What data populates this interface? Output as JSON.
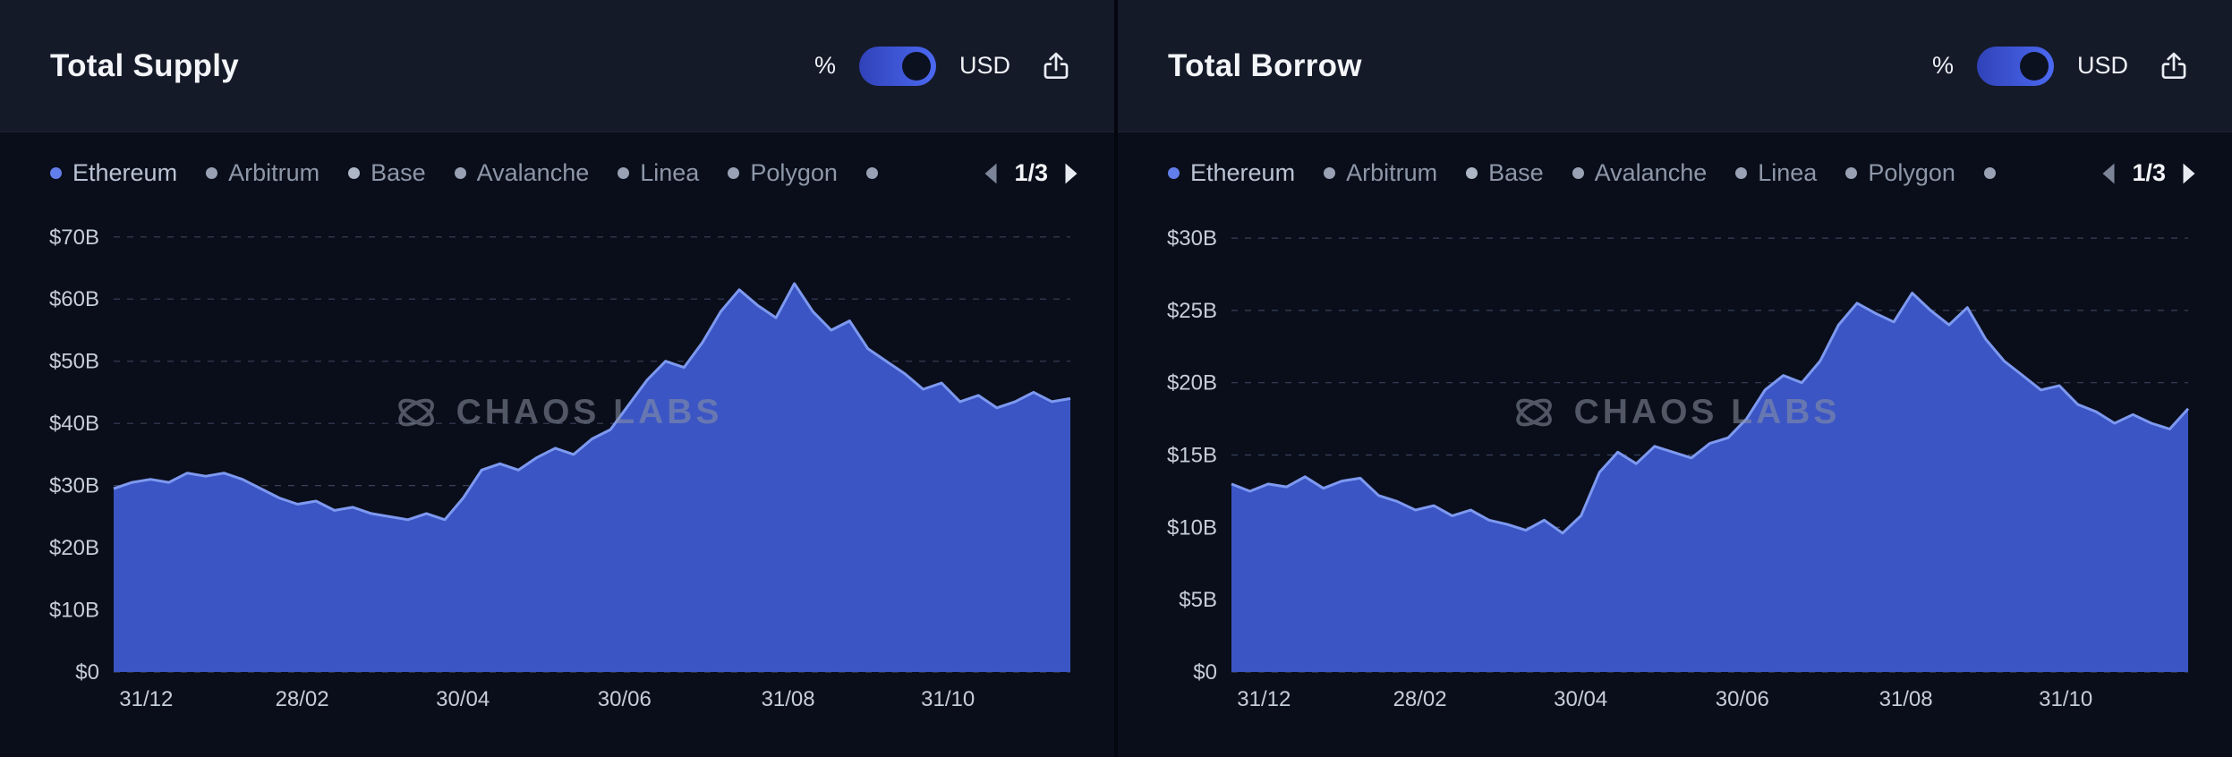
{
  "panels": [
    {
      "title": "Total Supply",
      "toggle": {
        "left_label": "%",
        "right_label": "USD",
        "selected": "USD"
      },
      "pager": "1/3"
    },
    {
      "title": "Total Borrow",
      "toggle": {
        "left_label": "%",
        "right_label": "USD",
        "selected": "USD"
      },
      "pager": "1/3"
    }
  ],
  "legend": {
    "items": [
      {
        "label": "Ethereum",
        "color": "#627eea",
        "active": true
      },
      {
        "label": "Arbitrum",
        "color": "#98a2b4",
        "active": false
      },
      {
        "label": "Base",
        "color": "#aeb7c6",
        "active": false
      },
      {
        "label": "Avalanche",
        "color": "#98a2b4",
        "active": false
      },
      {
        "label": "Linea",
        "color": "#98a2b4",
        "active": false
      },
      {
        "label": "Polygon",
        "color": "#98a2b4",
        "active": false
      },
      {
        "label": "",
        "color": "#98a2b4",
        "active": false
      }
    ]
  },
  "watermark": {
    "text": "CHAOS LABS"
  },
  "colors": {
    "area_fill": "#3b55c4",
    "area_line": "#7e99f0",
    "grid": "#39415a",
    "axis_text": "#c6cdda",
    "accent_blue": "#4b69f1"
  },
  "chart_data": [
    {
      "type": "area",
      "title": "Total Supply",
      "legend_position": "top",
      "grid": true,
      "ylim": [
        0,
        74
      ],
      "yticks": [
        {
          "label": "$70B",
          "value": 70
        },
        {
          "label": "$60B",
          "value": 60
        },
        {
          "label": "$50B",
          "value": 50
        },
        {
          "label": "$40B",
          "value": 40
        },
        {
          "label": "$30B",
          "value": 30
        },
        {
          "label": "$20B",
          "value": 20
        },
        {
          "label": "$10B",
          "value": 10
        },
        {
          "label": "$0",
          "value": 0
        }
      ],
      "x_ticks": [
        "31/12",
        "28/02",
        "30/04",
        "30/06",
        "31/08",
        "31/10"
      ],
      "x_tick_positions": [
        0.034,
        0.197,
        0.365,
        0.534,
        0.705,
        0.872
      ],
      "series": [
        {
          "name": "Ethereum",
          "unit": "USD billions",
          "values": [
            29.5,
            30.5,
            31,
            30.5,
            32,
            31.5,
            32,
            31,
            29.5,
            28,
            27,
            27.5,
            26,
            26.5,
            25.5,
            25,
            24.5,
            25.5,
            24.5,
            28,
            32.5,
            33.5,
            32.5,
            34.5,
            36,
            35,
            37.5,
            39,
            43,
            47,
            50,
            49,
            53,
            58,
            61.5,
            59,
            57,
            62.5,
            58,
            55,
            56.5,
            52,
            50,
            48,
            45.5,
            46.5,
            43.5,
            44.5,
            42.5,
            43.5,
            45,
            43.5,
            44
          ]
        }
      ]
    },
    {
      "type": "area",
      "title": "Total Borrow",
      "legend_position": "top",
      "grid": true,
      "ylim": [
        0,
        31.8
      ],
      "yticks": [
        {
          "label": "$30B",
          "value": 30
        },
        {
          "label": "$25B",
          "value": 25
        },
        {
          "label": "$20B",
          "value": 20
        },
        {
          "label": "$15B",
          "value": 15
        },
        {
          "label": "$10B",
          "value": 10
        },
        {
          "label": "$5B",
          "value": 5
        },
        {
          "label": "$0",
          "value": 0
        }
      ],
      "x_ticks": [
        "31/12",
        "28/02",
        "30/04",
        "30/06",
        "31/08",
        "31/10"
      ],
      "x_tick_positions": [
        0.034,
        0.197,
        0.365,
        0.534,
        0.705,
        0.872
      ],
      "series": [
        {
          "name": "Ethereum",
          "unit": "USD billions",
          "values": [
            13,
            12.5,
            13,
            12.8,
            13.5,
            12.7,
            13.2,
            13.4,
            12.2,
            11.8,
            11.2,
            11.5,
            10.8,
            11.2,
            10.5,
            10.2,
            9.8,
            10.5,
            9.6,
            10.8,
            13.8,
            15.2,
            14.4,
            15.6,
            15.2,
            14.8,
            15.8,
            16.2,
            17.5,
            19.5,
            20.5,
            20,
            21.5,
            24,
            25.5,
            24.8,
            24.2,
            26.2,
            25,
            24,
            25.2,
            23,
            21.5,
            20.5,
            19.5,
            19.8,
            18.5,
            18,
            17.2,
            17.8,
            17.2,
            16.8,
            18.2
          ]
        }
      ]
    }
  ]
}
